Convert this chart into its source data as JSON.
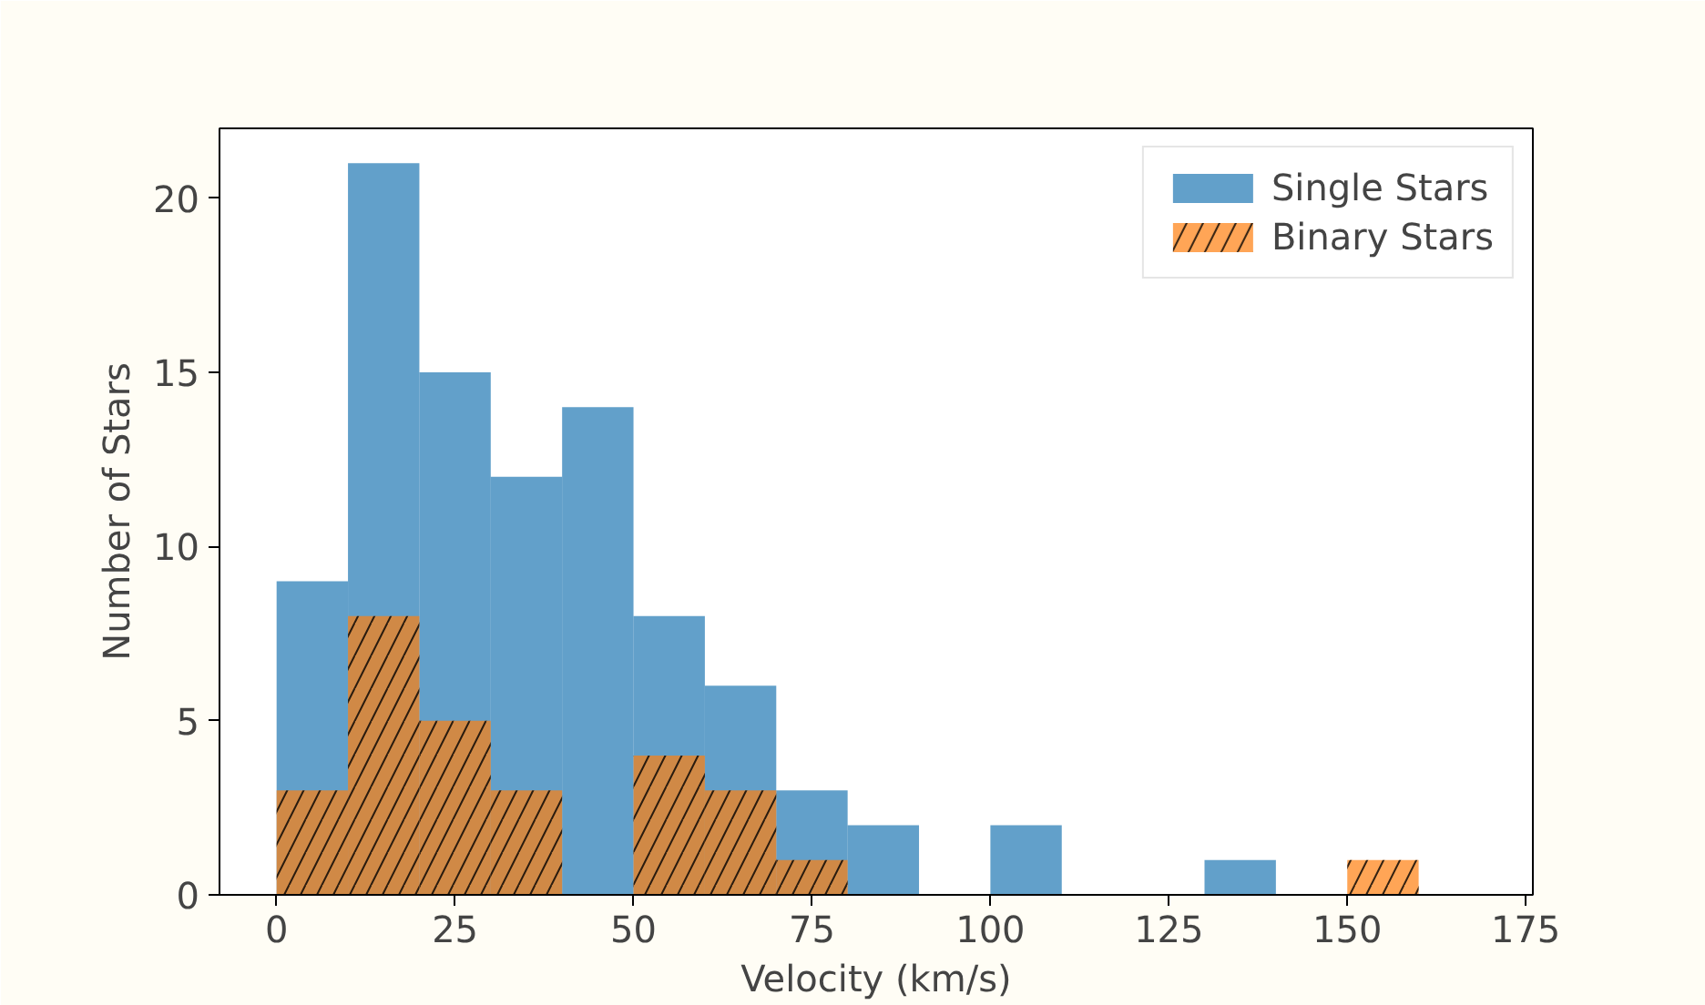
{
  "chart_data": {
    "type": "histogram",
    "xlabel": "Velocity (km/s)",
    "ylabel": "Number of Stars",
    "bins": [
      0,
      10,
      20,
      30,
      40,
      50,
      60,
      70,
      80,
      90,
      100,
      110,
      120,
      130,
      140,
      150,
      160
    ],
    "series": [
      {
        "name": "Single Stars",
        "color": "#1f77b4",
        "values": [
          9,
          21,
          15,
          12,
          14,
          8,
          6,
          3,
          2,
          0,
          2,
          0,
          0,
          1,
          0,
          0
        ]
      },
      {
        "name": "Binary Stars",
        "color": "#ff7f0e",
        "values": [
          3,
          8,
          5,
          3,
          0,
          4,
          3,
          1,
          0,
          0,
          0,
          0,
          0,
          0,
          0,
          1
        ]
      }
    ],
    "xlim": [
      -8,
      176
    ],
    "xticks": [
      0,
      25,
      50,
      75,
      100,
      125,
      150,
      175
    ],
    "ylim": [
      0,
      22
    ],
    "yticks": [
      0,
      5,
      10,
      15,
      20
    ],
    "grid": false,
    "legend": "top right"
  }
}
